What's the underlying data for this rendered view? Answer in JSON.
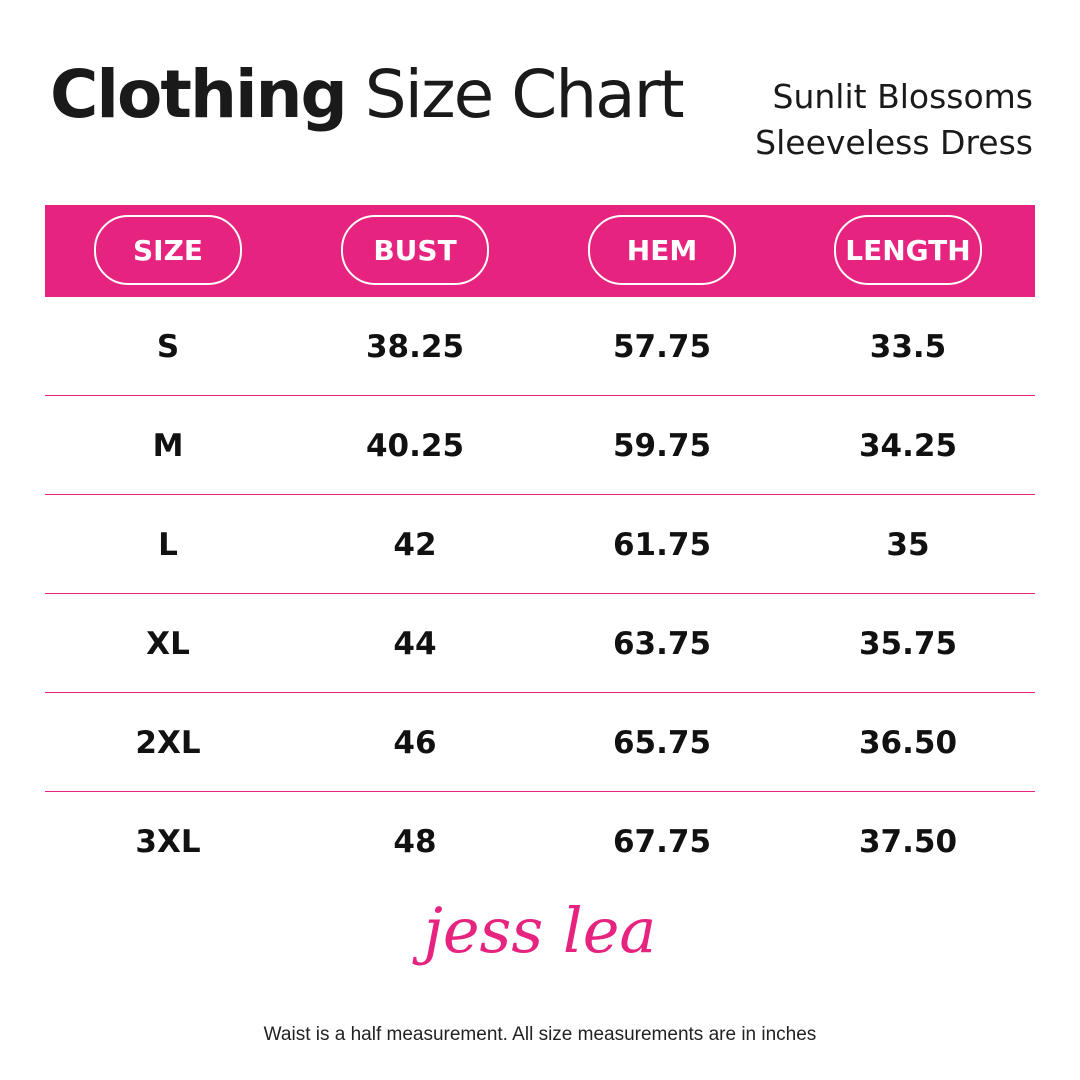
{
  "header": {
    "title_bold": "Clothing",
    "title_rest": "Size Chart",
    "product": [
      "Sunlit Blossoms",
      "Sleeveless Dress"
    ]
  },
  "table": {
    "columns": [
      "SIZE",
      "BUST",
      "HEM",
      "LENGTH"
    ],
    "rows": [
      [
        "S",
        "38.25",
        "57.75",
        "33.5"
      ],
      [
        "M",
        "40.25",
        "59.75",
        "34.25"
      ],
      [
        "L",
        "42",
        "61.75",
        "35"
      ],
      [
        "XL",
        "44",
        "63.75",
        "35.75"
      ],
      [
        "2XL",
        "46",
        "65.75",
        "36.50"
      ],
      [
        "3XL",
        "48",
        "67.75",
        "37.50"
      ]
    ]
  },
  "logo": "jess lea",
  "footer": {
    "note": "Waist is a half measurement. All size measurements are in inches"
  }
}
